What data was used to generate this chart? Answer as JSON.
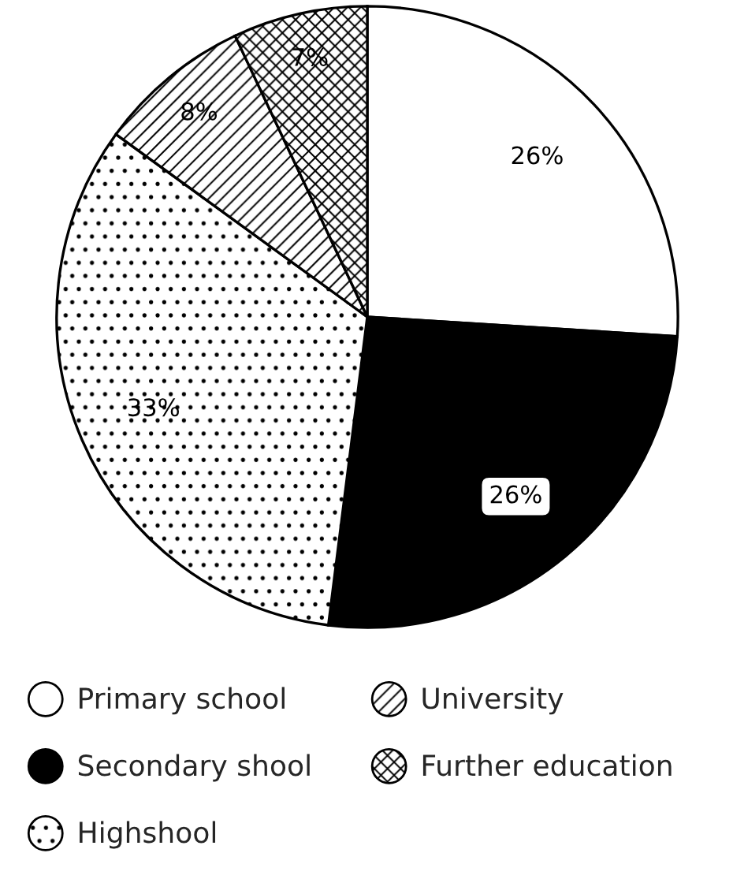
{
  "chart_data": {
    "type": "pie",
    "categories": [
      "Primary school",
      "Secondary shool",
      "Highshool",
      "University",
      "Further education"
    ],
    "values": [
      26,
      26,
      33,
      8,
      7
    ],
    "value_labels": [
      "26%",
      "26%",
      "33%",
      "8%",
      "7%"
    ],
    "colors": [
      "#ffffff",
      "#000000",
      "#ffffff",
      "#ffffff",
      "#ffffff"
    ],
    "legend": "bottom"
  }
}
